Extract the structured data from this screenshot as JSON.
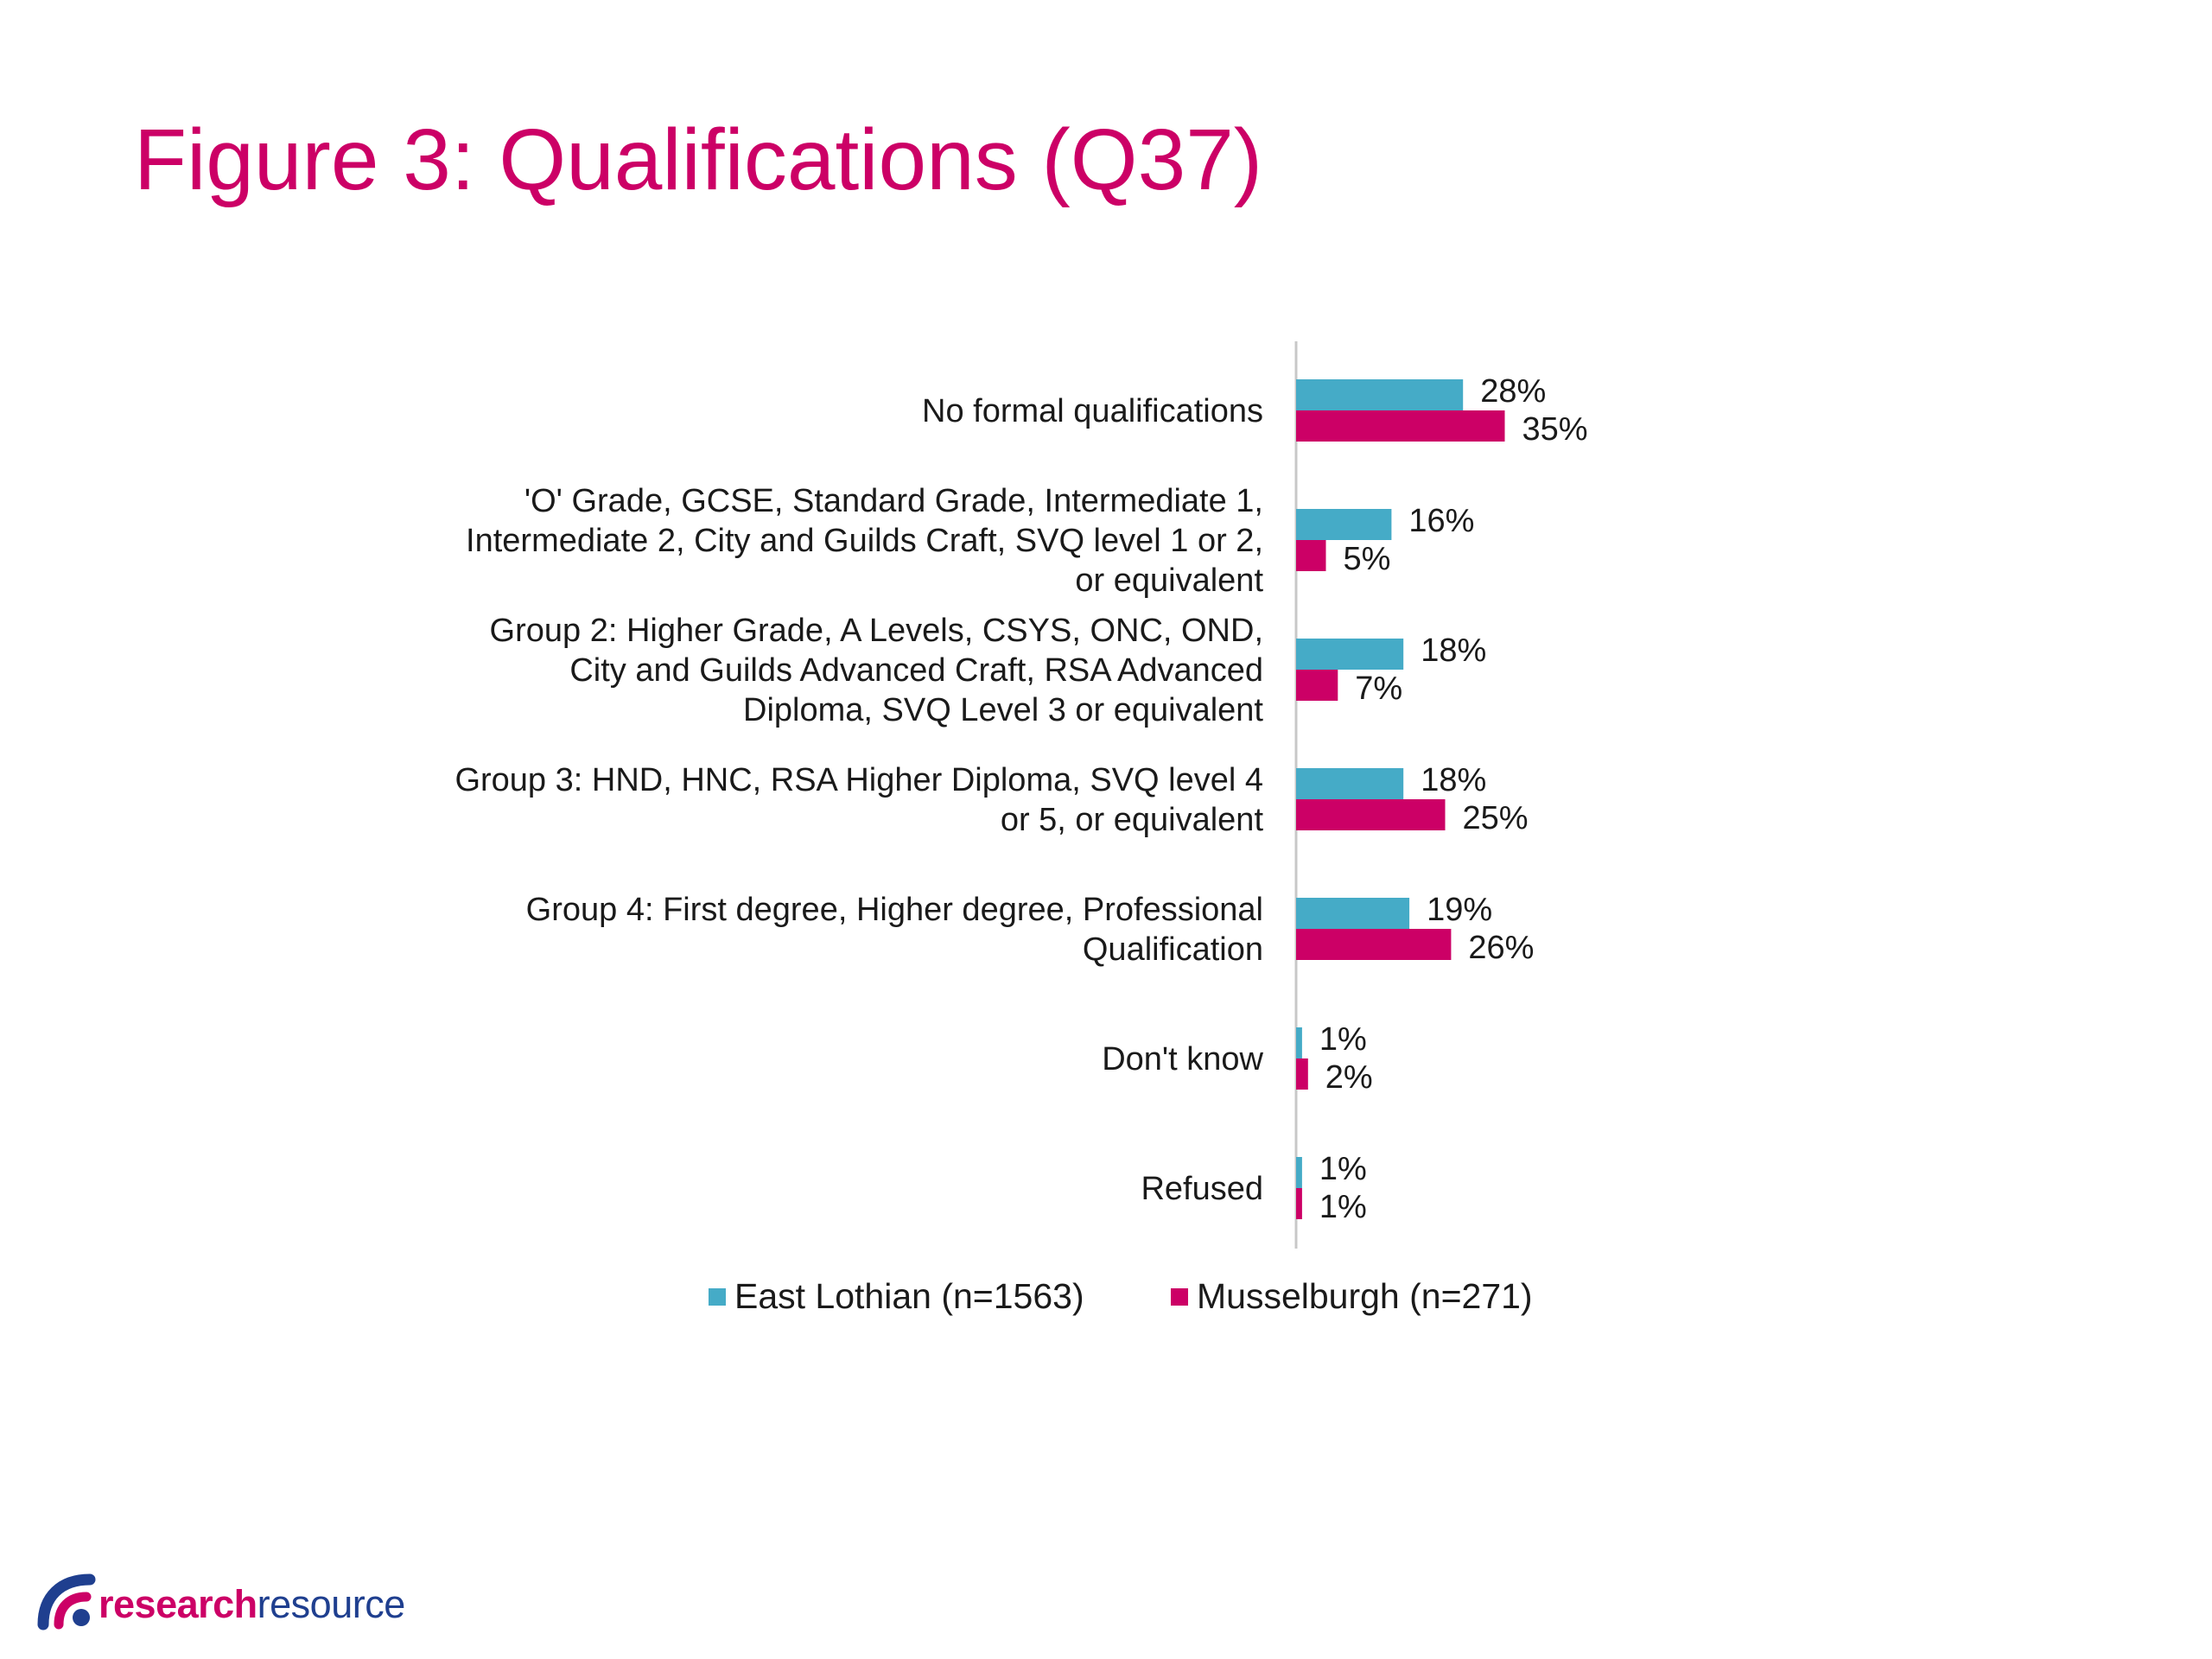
{
  "title": "Figure 3: Qualifications (Q37)",
  "colors": {
    "title": "#cc0066",
    "axis": "#c8c8c8",
    "brand_primary": "#cc0066",
    "brand_secondary": "#1f3f8f"
  },
  "brand": {
    "part1": "research",
    "part2": "resource"
  },
  "chart_data": {
    "type": "bar",
    "orientation": "horizontal",
    "title": "",
    "xlabel": "",
    "ylabel": "",
    "xlim": [
      0,
      100
    ],
    "grid": false,
    "legend_position": "bottom",
    "categories": [
      [
        "No formal qualifications"
      ],
      [
        "'O' Grade, GCSE, Standard Grade, Intermediate 1,",
        "Intermediate 2, City and Guilds Craft, SVQ level 1 or 2,",
        "or equivalent"
      ],
      [
        "Group 2: Higher Grade, A Levels, CSYS, ONC, OND,",
        "City and Guilds Advanced Craft, RSA Advanced",
        "Diploma, SVQ Level 3 or equivalent"
      ],
      [
        "Group 3: HND, HNC, RSA Higher Diploma, SVQ level 4",
        "or 5, or equivalent"
      ],
      [
        "Group 4: First degree, Higher degree, Professional",
        "Qualification"
      ],
      [
        "Don't know"
      ],
      [
        "Refused"
      ]
    ],
    "series": [
      {
        "name": "East Lothian (n=1563)",
        "color": "#45abc7",
        "values": [
          28,
          16,
          18,
          18,
          19,
          1,
          1
        ],
        "labels": [
          "28%",
          "16%",
          "18%",
          "18%",
          "19%",
          "1%",
          "1%"
        ]
      },
      {
        "name": "Musselburgh (n=271)",
        "color": "#cc0066",
        "values": [
          35,
          5,
          7,
          25,
          26,
          2,
          1
        ],
        "labels": [
          "35%",
          "5%",
          "7%",
          "25%",
          "26%",
          "2%",
          "1%"
        ]
      }
    ]
  }
}
